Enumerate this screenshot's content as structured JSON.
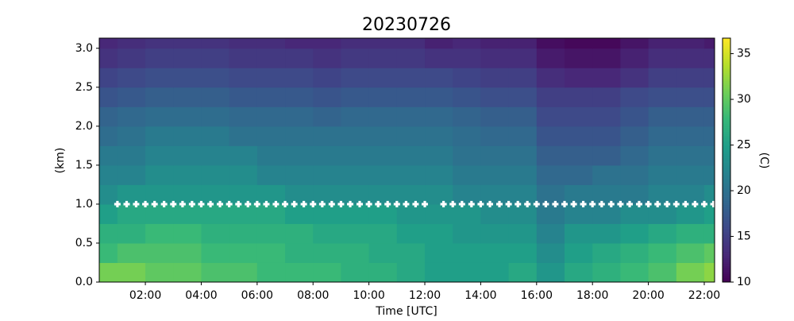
{
  "chart_data": {
    "type": "heatmap",
    "title": "20230726",
    "xlabel": "Time [UTC]",
    "ylabel": "(km)",
    "colorbar_label": "(C)",
    "colormap": "viridis",
    "x": [
      0.35,
      1,
      2,
      3,
      4,
      5,
      6,
      7,
      8,
      9,
      10,
      11,
      12,
      13,
      14,
      15,
      16,
      17,
      18,
      19,
      20,
      21,
      22,
      22.37
    ],
    "y": [
      0,
      0.25,
      0.5,
      0.75,
      1,
      1.25,
      1.5,
      1.75,
      2,
      2.25,
      2.5,
      2.75,
      3,
      3.13
    ],
    "z": [
      [
        31,
        31,
        30,
        30,
        29,
        29,
        28,
        28,
        28,
        27,
        27,
        26,
        25,
        25,
        25,
        26,
        24,
        26,
        27,
        28,
        29,
        31,
        32
      ],
      [
        28,
        29,
        29,
        29,
        28,
        28,
        28,
        27,
        27,
        27,
        26,
        26,
        25,
        25,
        25,
        25,
        23,
        25,
        26,
        27,
        28,
        29,
        30
      ],
      [
        27,
        27,
        28,
        28,
        27,
        27,
        27,
        27,
        26,
        26,
        26,
        25,
        25,
        24,
        24,
        24,
        22,
        24,
        24,
        25,
        26,
        27,
        27
      ],
      [
        25,
        26,
        26,
        26,
        26,
        26,
        26,
        25,
        25,
        25,
        25,
        24,
        24,
        24,
        23,
        23,
        21,
        22,
        22,
        23,
        23,
        24,
        25
      ],
      [
        23,
        24,
        24,
        24,
        24,
        24,
        24,
        23,
        23,
        23,
        23,
        23,
        23,
        22,
        22,
        22,
        20,
        21,
        21,
        21,
        22,
        22,
        23
      ],
      [
        22,
        22,
        23,
        23,
        23,
        23,
        22,
        22,
        22,
        22,
        22,
        22,
        22,
        21,
        21,
        21,
        19,
        19,
        20,
        20,
        21,
        21,
        21
      ],
      [
        21,
        21,
        22,
        22,
        22,
        22,
        21,
        21,
        21,
        21,
        21,
        21,
        21,
        20,
        20,
        20,
        18,
        18,
        18,
        19,
        20,
        20,
        20
      ],
      [
        19.5,
        20,
        21,
        21,
        21,
        20,
        20,
        20,
        20,
        20,
        20,
        20,
        20,
        19.5,
        19,
        19,
        17,
        17,
        17,
        18,
        19,
        19,
        19
      ],
      [
        18.5,
        19,
        19.5,
        19.5,
        19.5,
        19,
        19,
        19,
        18.5,
        19,
        19,
        19,
        19,
        18.5,
        18,
        18,
        16,
        16,
        16,
        17,
        18,
        18,
        18
      ],
      [
        17,
        17.5,
        18,
        18,
        18,
        17.5,
        17.5,
        17.5,
        17,
        17.5,
        17.5,
        17.5,
        17.5,
        17,
        16.5,
        16.5,
        15,
        15,
        15,
        16,
        16.5,
        16.5,
        16.5
      ],
      [
        15.5,
        16,
        16.5,
        16.5,
        16.5,
        16,
        16,
        16,
        15.5,
        16,
        16,
        16,
        16,
        15.5,
        15,
        15,
        13.5,
        13,
        13,
        14,
        15,
        15,
        15
      ],
      [
        14,
        14.5,
        15,
        15,
        15,
        14.5,
        14.5,
        14.5,
        14,
        14.5,
        14.5,
        14.5,
        14,
        14,
        13.5,
        13.5,
        12,
        11.5,
        11.5,
        12.5,
        13.5,
        13.5,
        13.5
      ],
      [
        13,
        13.5,
        14,
        14,
        14,
        13.5,
        13.5,
        13,
        13,
        13.5,
        13.5,
        13.5,
        12.5,
        13,
        12.5,
        12.5,
        11,
        10.5,
        10.5,
        11.5,
        12.5,
        12.5,
        12
      ]
    ],
    "series": [
      {
        "color": "#ffffff",
        "x": [
          1,
          1.33,
          1.67,
          2,
          2.33,
          2.67,
          3,
          3.33,
          3.67,
          4,
          4.33,
          4.67,
          5,
          5.33,
          5.67,
          6,
          6.33,
          6.67,
          7,
          7.33,
          7.67,
          8,
          8.33,
          8.67,
          9,
          9.33,
          9.67,
          10,
          10.33,
          10.67,
          11,
          11.33,
          11.67,
          12,
          12.67,
          13,
          13.33,
          13.67,
          14,
          14.33,
          14.67,
          15,
          15.33,
          15.67,
          16,
          16.33,
          16.67,
          17,
          17.33,
          17.67,
          18,
          18.33,
          18.67,
          19,
          19.33,
          19.67,
          20,
          20.33,
          20.67,
          21,
          21.33,
          21.67,
          22,
          22.33
        ],
        "values": [
          1,
          1,
          1,
          1,
          1,
          1,
          1,
          1,
          1,
          1,
          1,
          1,
          1,
          1,
          1,
          1,
          1,
          1,
          1,
          1,
          1,
          1,
          1,
          1,
          1,
          1,
          1,
          1,
          1,
          1,
          1,
          1,
          1,
          1,
          1,
          1,
          1,
          1,
          1,
          1,
          1,
          1,
          1,
          1,
          1,
          1,
          1,
          1,
          1,
          1,
          1,
          1,
          1,
          1,
          1,
          1,
          1,
          1,
          1,
          1,
          1,
          1,
          1,
          1
        ]
      }
    ],
    "xlim": [
      0.35,
      22.37
    ],
    "ylim": [
      0,
      3.13
    ],
    "clim": [
      10,
      36.7
    ],
    "xticks": [
      {
        "value": 2,
        "label": "02:00"
      },
      {
        "value": 4,
        "label": "04:00"
      },
      {
        "value": 6,
        "label": "06:00"
      },
      {
        "value": 8,
        "label": "08:00"
      },
      {
        "value": 10,
        "label": "10:00"
      },
      {
        "value": 12,
        "label": "12:00"
      },
      {
        "value": 14,
        "label": "14:00"
      },
      {
        "value": 16,
        "label": "16:00"
      },
      {
        "value": 18,
        "label": "18:00"
      },
      {
        "value": 20,
        "label": "20:00"
      },
      {
        "value": 22,
        "label": "22:00"
      }
    ],
    "yticks": [
      {
        "value": 0,
        "label": "0.0"
      },
      0.5,
      {
        "value": 1,
        "label": "1.0"
      },
      1.5,
      {
        "value": 2,
        "label": "2.0"
      },
      2.5,
      {
        "value": 3,
        "label": "3.0"
      }
    ],
    "cticks": [
      10,
      15,
      20,
      25,
      30,
      35
    ]
  }
}
